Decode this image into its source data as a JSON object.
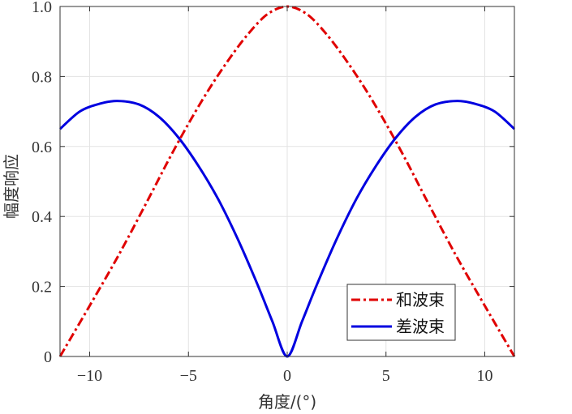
{
  "chart_data": {
    "type": "line",
    "xlabel": "角度/(°)",
    "ylabel": "幅度响应",
    "xlim": [
      -11.5,
      11.5
    ],
    "ylim": [
      0,
      1
    ],
    "xticks": [
      -10,
      -5,
      0,
      5,
      10
    ],
    "xtick_labels": [
      "−10",
      "−5",
      "0",
      "5",
      "10"
    ],
    "yticks": [
      0,
      0.2,
      0.4,
      0.6,
      0.8,
      1.0
    ],
    "ytick_labels": [
      "0",
      "0.2",
      "0.4",
      "0.6",
      "0.8",
      "1.0"
    ],
    "grid": true,
    "legend_position": "bottom-right",
    "series": [
      {
        "name": "和波束",
        "color": "#e00000",
        "style": "dashdot",
        "x": [
          -11.5,
          -10,
          -8.5,
          -7,
          -6,
          -5,
          -4,
          -3,
          -2,
          -1,
          0,
          1,
          2,
          3,
          4,
          5,
          6,
          7,
          8.5,
          10,
          11.5
        ],
        "y": [
          0.0,
          0.145,
          0.293,
          0.453,
          0.562,
          0.665,
          0.76,
          0.845,
          0.92,
          0.978,
          1.0,
          0.978,
          0.92,
          0.845,
          0.76,
          0.665,
          0.562,
          0.453,
          0.293,
          0.145,
          0.0
        ]
      },
      {
        "name": "差波束",
        "color": "#0000e0",
        "style": "solid",
        "x": [
          -11.5,
          -10.5,
          -9.5,
          -8.6,
          -7.5,
          -6.5,
          -5.5,
          -4.5,
          -3.5,
          -2.5,
          -1.5,
          -0.75,
          0,
          0.75,
          1.5,
          2.5,
          3.5,
          4.5,
          5.5,
          6.5,
          7.5,
          8.6,
          9.5,
          10.5,
          11.5
        ],
        "y": [
          0.65,
          0.7,
          0.722,
          0.73,
          0.72,
          0.685,
          0.625,
          0.545,
          0.45,
          0.335,
          0.205,
          0.1,
          0.0,
          0.1,
          0.205,
          0.335,
          0.45,
          0.545,
          0.625,
          0.685,
          0.72,
          0.73,
          0.722,
          0.7,
          0.65
        ]
      }
    ]
  }
}
